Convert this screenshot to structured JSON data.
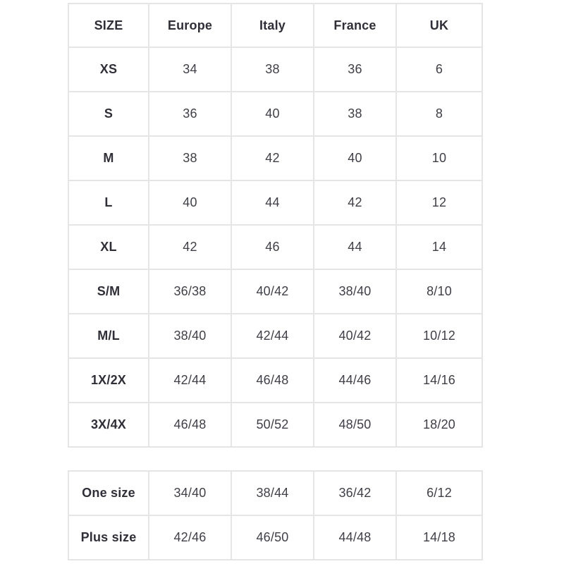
{
  "colors": {
    "background": "#ffffff",
    "border": "#e5e5e6",
    "text": "#3f3f47",
    "heading": "#302f38"
  },
  "size_chart": {
    "columns": [
      "SIZE",
      "Europe",
      "Italy",
      "France",
      "UK"
    ],
    "rows": [
      [
        "XS",
        "34",
        "38",
        "36",
        "6"
      ],
      [
        "S",
        "36",
        "40",
        "38",
        "8"
      ],
      [
        "M",
        "38",
        "42",
        "40",
        "10"
      ],
      [
        "L",
        "40",
        "44",
        "42",
        "12"
      ],
      [
        "XL",
        "42",
        "46",
        "44",
        "14"
      ],
      [
        "S/M",
        "36/38",
        "40/42",
        "38/40",
        "8/10"
      ],
      [
        "M/L",
        "38/40",
        "42/44",
        "40/42",
        "10/12"
      ],
      [
        "1X/2X",
        "42/44",
        "46/48",
        "44/46",
        "14/16"
      ],
      [
        "3X/4X",
        "46/48",
        "50/52",
        "48/50",
        "18/20"
      ]
    ]
  },
  "special_sizes": {
    "rows": [
      [
        "One size",
        "34/40",
        "38/44",
        "36/42",
        "6/12"
      ],
      [
        "Plus size",
        "42/46",
        "46/50",
        "44/48",
        "14/18"
      ]
    ]
  }
}
